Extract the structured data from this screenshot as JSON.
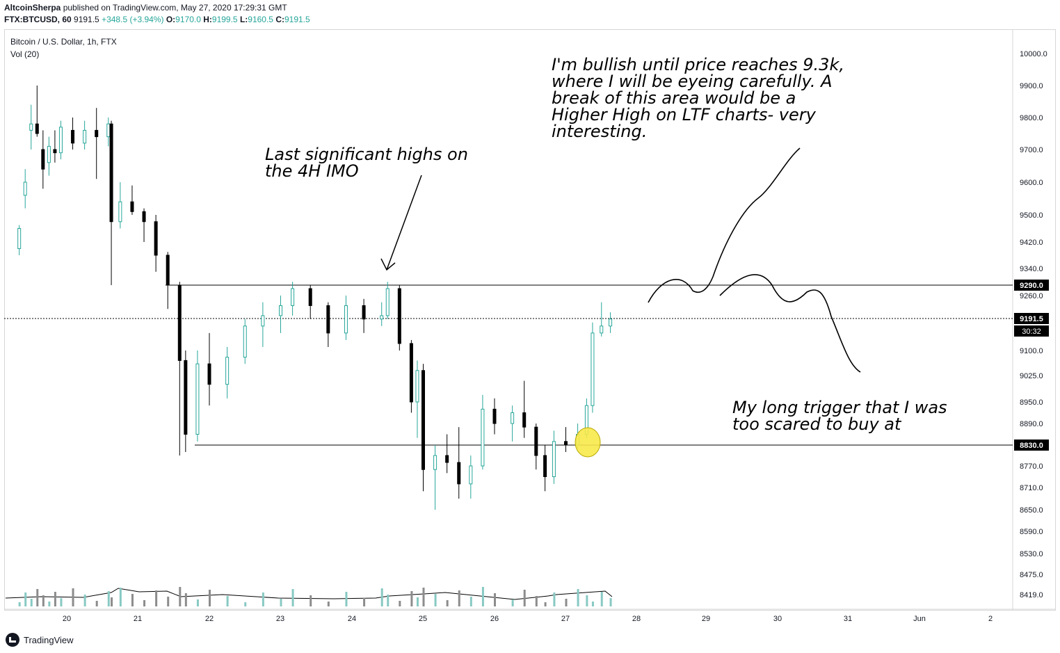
{
  "header": {
    "author": "AltcoinSherpa",
    "published": " published on TradingView.com, May 27, 2020 17:29:31 GMT",
    "symbol": "FTX:BTCUSD, 60",
    "last": "9191.5",
    "change": "+348.5 (+3.94%)",
    "o_label": "O:",
    "o": "9170.0",
    "h_label": "H:",
    "h": "9199.5",
    "l_label": "L:",
    "l": "9160.5",
    "c_label": "C:",
    "c": "9191.5"
  },
  "legend": {
    "symbol": "Bitcoin / U.S. Dollar, 1h, FTX",
    "volume": "Vol (20)"
  },
  "annotations": {
    "highs_note": "Last significant highs on\nthe 4H IMO",
    "bullish_note": "I'm bullish until price reaches 9.3k,\nwhere I will be eyeing carefully. A\nbreak of this area would be a\nHigher High on LTF charts- very\ninteresting.",
    "trigger_note": "My long trigger that I was\ntoo scared to buy at"
  },
  "footer": {
    "brand": "TradingView"
  },
  "colors": {
    "up": "#26a69a",
    "down": "#000000",
    "vol_up": "#88c9c3",
    "vol_down": "#8c8c8c",
    "highlight": "#f7e94a"
  },
  "chart_data": {
    "type": "candlestick",
    "y_tick_labels": [
      "10000.0",
      "9900.0",
      "9800.0",
      "9700.0",
      "9600.0",
      "9500.0",
      "9420.0",
      "9340.0",
      "9260.0",
      "9100.0",
      "9025.0",
      "8950.0",
      "8890.0",
      "8770.0",
      "8710.0",
      "8650.0",
      "8590.0",
      "8530.0",
      "8475.0",
      "8419.0"
    ],
    "x_tick_labels": [
      "20",
      "21",
      "22",
      "23",
      "24",
      "25",
      "26",
      "27",
      "28",
      "29",
      "30",
      "31",
      "Jun",
      "2"
    ],
    "horizontal_lines": [
      {
        "price": 9290.0,
        "label": "9290.0"
      },
      {
        "price": 8830.0,
        "label": "8830.0"
      }
    ],
    "last_price": {
      "price": 9191.5,
      "label": "9191.5",
      "countdown": "30:32"
    },
    "candles": [
      {
        "x": "19 08:00",
        "o": 9400,
        "h": 9470,
        "l": 9380,
        "c": 9460
      },
      {
        "x": "19 10:00",
        "o": 9560,
        "h": 9640,
        "l": 9520,
        "c": 9600
      },
      {
        "x": "19 12:00",
        "o": 9760,
        "h": 9840,
        "l": 9700,
        "c": 9780
      },
      {
        "x": "19 14:00",
        "o": 9780,
        "h": 9900,
        "l": 9740,
        "c": 9750
      },
      {
        "x": "19 16:00",
        "o": 9700,
        "h": 9760,
        "l": 9580,
        "c": 9640
      },
      {
        "x": "19 18:00",
        "o": 9660,
        "h": 9740,
        "l": 9620,
        "c": 9710
      },
      {
        "x": "19 20:00",
        "o": 9700,
        "h": 9760,
        "l": 9660,
        "c": 9690
      },
      {
        "x": "19 22:00",
        "o": 9690,
        "h": 9790,
        "l": 9670,
        "c": 9770
      },
      {
        "x": "20 02:00",
        "o": 9760,
        "h": 9800,
        "l": 9700,
        "c": 9720
      },
      {
        "x": "20 06:00",
        "o": 9720,
        "h": 9790,
        "l": 9700,
        "c": 9760
      },
      {
        "x": "20 10:00",
        "o": 9760,
        "h": 9830,
        "l": 9610,
        "c": 9740
      },
      {
        "x": "20 14:00",
        "o": 9740,
        "h": 9800,
        "l": 9710,
        "c": 9780
      },
      {
        "x": "20 15:00",
        "o": 9780,
        "h": 9790,
        "l": 9290,
        "c": 9480
      },
      {
        "x": "20 18:00",
        "o": 9480,
        "h": 9600,
        "l": 9460,
        "c": 9540
      },
      {
        "x": "20 22:00",
        "o": 9540,
        "h": 9590,
        "l": 9500,
        "c": 9510
      },
      {
        "x": "21 02:00",
        "o": 9510,
        "h": 9520,
        "l": 9420,
        "c": 9480
      },
      {
        "x": "21 06:00",
        "o": 9480,
        "h": 9500,
        "l": 9330,
        "c": 9380
      },
      {
        "x": "21 10:00",
        "o": 9380,
        "h": 9390,
        "l": 9220,
        "c": 9290
      },
      {
        "x": "21 14:00",
        "o": 9290,
        "h": 9300,
        "l": 8800,
        "c": 9070
      },
      {
        "x": "21 16:00",
        "o": 9070,
        "h": 9100,
        "l": 8810,
        "c": 8860
      },
      {
        "x": "21 20:00",
        "o": 8860,
        "h": 9100,
        "l": 8840,
        "c": 9060
      },
      {
        "x": "22 00:00",
        "o": 9060,
        "h": 9150,
        "l": 8940,
        "c": 9000
      },
      {
        "x": "22 06:00",
        "o": 9000,
        "h": 9110,
        "l": 8960,
        "c": 9080
      },
      {
        "x": "22 12:00",
        "o": 9080,
        "h": 9190,
        "l": 9060,
        "c": 9170
      },
      {
        "x": "22 18:00",
        "o": 9170,
        "h": 9240,
        "l": 9110,
        "c": 9200
      },
      {
        "x": "23 00:00",
        "o": 9200,
        "h": 9260,
        "l": 9150,
        "c": 9230
      },
      {
        "x": "23 04:00",
        "o": 9230,
        "h": 9300,
        "l": 9200,
        "c": 9280
      },
      {
        "x": "23 10:00",
        "o": 9280,
        "h": 9290,
        "l": 9190,
        "c": 9230
      },
      {
        "x": "23 16:00",
        "o": 9230,
        "h": 9240,
        "l": 9110,
        "c": 9150
      },
      {
        "x": "23 22:00",
        "o": 9150,
        "h": 9260,
        "l": 9130,
        "c": 9230
      },
      {
        "x": "24 04:00",
        "o": 9230,
        "h": 9250,
        "l": 9150,
        "c": 9190
      },
      {
        "x": "24 10:00",
        "o": 9190,
        "h": 9240,
        "l": 9170,
        "c": 9200
      },
      {
        "x": "24 12:00",
        "o": 9200,
        "h": 9300,
        "l": 9190,
        "c": 9280
      },
      {
        "x": "24 16:00",
        "o": 9280,
        "h": 9290,
        "l": 9100,
        "c": 9120
      },
      {
        "x": "24 20:00",
        "o": 9120,
        "h": 9130,
        "l": 8920,
        "c": 8950
      },
      {
        "x": "24 22:00",
        "o": 8950,
        "h": 9070,
        "l": 8850,
        "c": 9040
      },
      {
        "x": "25 00:00",
        "o": 9040,
        "h": 9060,
        "l": 8700,
        "c": 8760
      },
      {
        "x": "25 04:00",
        "o": 8760,
        "h": 8830,
        "l": 8650,
        "c": 8800
      },
      {
        "x": "25 08:00",
        "o": 8800,
        "h": 8860,
        "l": 8750,
        "c": 8780
      },
      {
        "x": "25 12:00",
        "o": 8780,
        "h": 8880,
        "l": 8680,
        "c": 8720
      },
      {
        "x": "25 16:00",
        "o": 8720,
        "h": 8800,
        "l": 8680,
        "c": 8770
      },
      {
        "x": "25 20:00",
        "o": 8770,
        "h": 8970,
        "l": 8760,
        "c": 8930
      },
      {
        "x": "26 00:00",
        "o": 8930,
        "h": 8960,
        "l": 8860,
        "c": 8890
      },
      {
        "x": "26 06:00",
        "o": 8890,
        "h": 8940,
        "l": 8840,
        "c": 8920
      },
      {
        "x": "26 10:00",
        "o": 8920,
        "h": 9010,
        "l": 8850,
        "c": 8880
      },
      {
        "x": "26 14:00",
        "o": 8880,
        "h": 8890,
        "l": 8760,
        "c": 8800
      },
      {
        "x": "26 17:00",
        "o": 8800,
        "h": 8830,
        "l": 8700,
        "c": 8740
      },
      {
        "x": "26 20:00",
        "o": 8740,
        "h": 8870,
        "l": 8720,
        "c": 8840
      },
      {
        "x": "27 00:00",
        "o": 8840,
        "h": 8880,
        "l": 8810,
        "c": 8830
      },
      {
        "x": "27 04:00",
        "o": 8830,
        "h": 8890,
        "l": 8820,
        "c": 8860
      },
      {
        "x": "27 07:00",
        "o": 8860,
        "h": 8960,
        "l": 8850,
        "c": 8940
      },
      {
        "x": "27 09:00",
        "o": 8940,
        "h": 9180,
        "l": 8920,
        "c": 9150
      },
      {
        "x": "27 12:00",
        "o": 9150,
        "h": 9240,
        "l": 9140,
        "c": 9170
      },
      {
        "x": "27 15:00",
        "o": 9170,
        "h": 9210,
        "l": 9150,
        "c": 9190
      }
    ]
  }
}
